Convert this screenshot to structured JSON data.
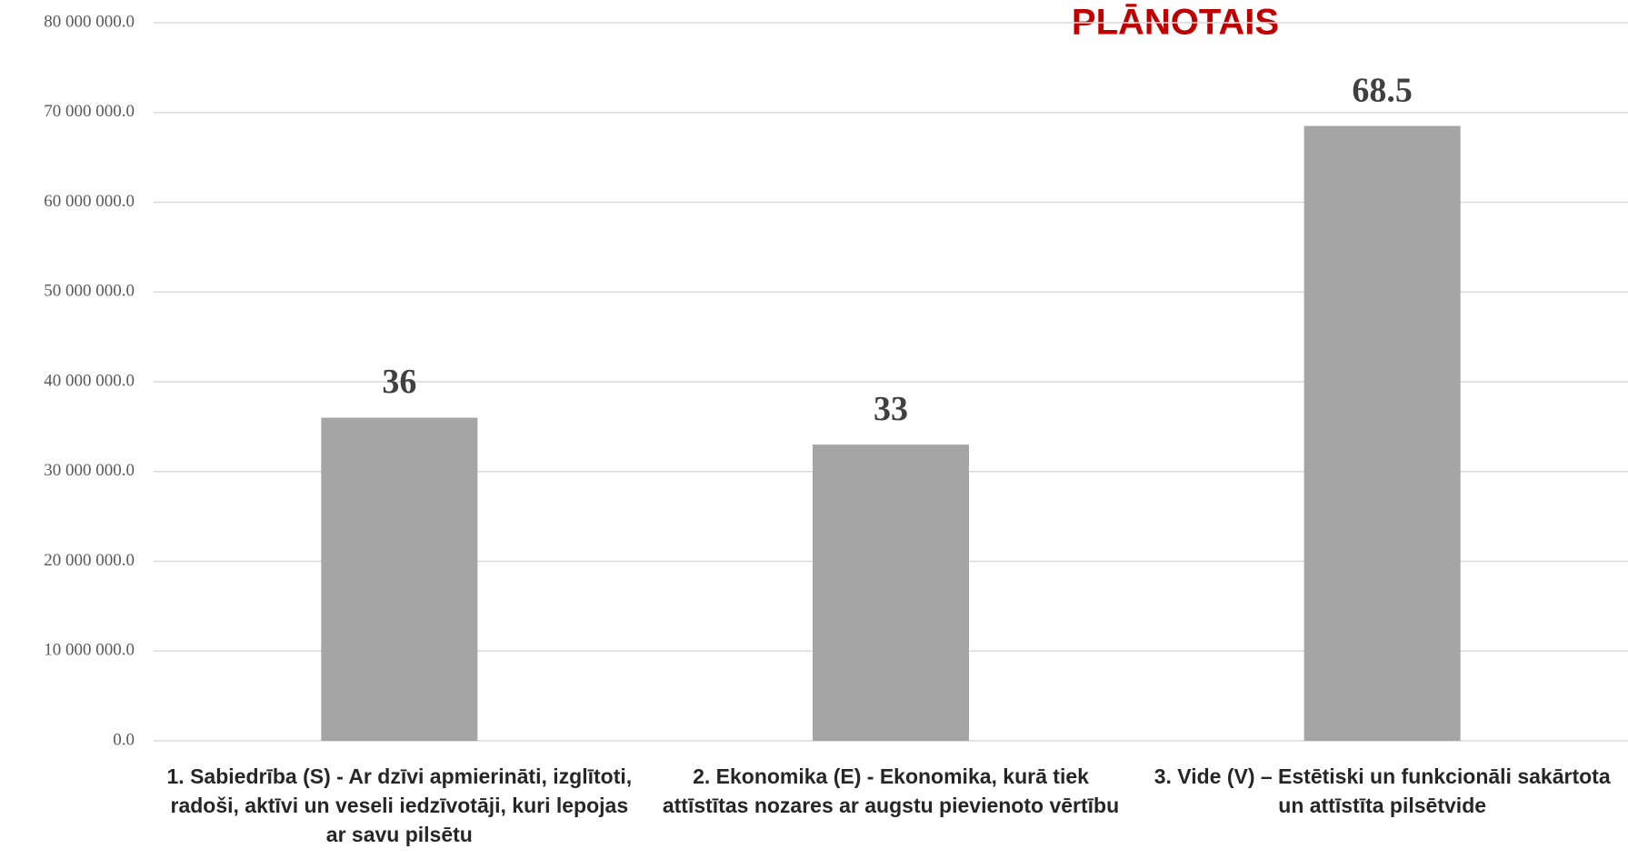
{
  "chart_data": {
    "type": "bar",
    "title": "PLĀNOTAIS",
    "categories": [
      "1. Sabiedrība (S) - Ar dzīvi apmierināti, izglītoti, radoši, aktīvi un veseli iedzīvotāji, kuri lepojas ar savu pilsētu",
      "2. Ekonomika (E) - Ekonomika, kurā tiek attīstītas nozares ar augstu pievienoto vērtību",
      "3. Vide (V) – Estētiski un funkcionāli sakārtota un attīstīta pilsētvide"
    ],
    "values": [
      36000000,
      33000000,
      68500000
    ],
    "value_labels": [
      "36",
      "33",
      "68.5"
    ],
    "color": "#a5a5a5",
    "ylim": [
      0,
      80000000
    ],
    "yticks": [
      {
        "value": 0,
        "label": "0.0"
      },
      {
        "value": 10000000,
        "label": "10 000 000.0"
      },
      {
        "value": 20000000,
        "label": "20 000 000.0"
      },
      {
        "value": 30000000,
        "label": "30 000 000.0"
      },
      {
        "value": 40000000,
        "label": "40 000 000.0"
      },
      {
        "value": 50000000,
        "label": "50 000 000.0"
      },
      {
        "value": 60000000,
        "label": "60 000 000.0"
      },
      {
        "value": 70000000,
        "label": "70 000 000.0"
      },
      {
        "value": 80000000,
        "label": "80 000 000.0"
      }
    ],
    "grid": true
  }
}
